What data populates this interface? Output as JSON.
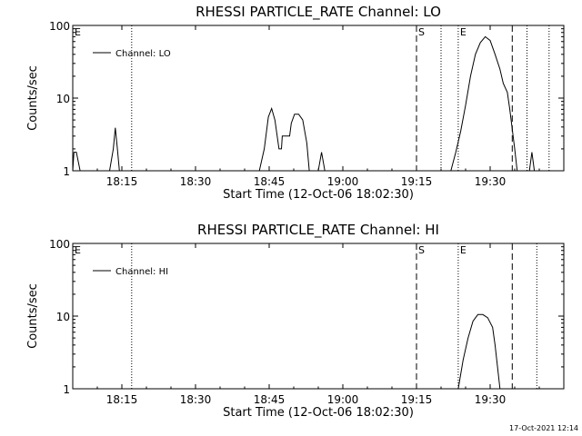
{
  "chart_data": [
    {
      "type": "line",
      "title": "RHESSI PARTICLE_RATE Channel: LO",
      "xlabel": "Start Time (12-Oct-06 18:02:30)",
      "ylabel": "Counts/sec",
      "x_scale": "time",
      "y_scale": "log",
      "xlim": [
        "18:05:00",
        "19:45:00"
      ],
      "ylim": [
        1,
        100
      ],
      "x_ticks": [
        "18:15",
        "18:30",
        "18:45",
        "19:00",
        "19:15",
        "19:30"
      ],
      "y_ticks": [
        "1",
        "10",
        "100"
      ],
      "legend": {
        "placement": "top-left",
        "entries": [
          "Channel: LO"
        ]
      },
      "markers": [
        {
          "time": "19:20:00",
          "style": "dotted",
          "label": ""
        },
        {
          "time": "19:37:30",
          "style": "dotted",
          "label": ""
        },
        {
          "time": "18:17:00",
          "style": "dotted",
          "label": ""
        },
        {
          "time": "19:42:00",
          "style": "dotted",
          "label": ""
        },
        {
          "time": "19:15:00",
          "style": "dashed",
          "label": "S"
        },
        {
          "time": "19:23:30",
          "style": "dotted",
          "label": "E"
        },
        {
          "time": "19:34:30",
          "style": "dashed",
          "label": ""
        }
      ],
      "edge_label": "E",
      "series": [
        {
          "name": "Channel: LO",
          "points": [
            [
              "18:05:00",
              1.0
            ],
            [
              "18:05:15",
              1.8
            ],
            [
              "18:05:45",
              1.8
            ],
            [
              "18:06:30",
              1.0
            ],
            [
              "18:12:30",
              1.0
            ],
            [
              "18:13:15",
              2.0
            ],
            [
              "18:13:40",
              3.9
            ],
            [
              "18:14:05",
              2.0
            ],
            [
              "18:14:30",
              1.0
            ],
            [
              "18:43:00",
              1.0
            ],
            [
              "18:44:00",
              2.0
            ],
            [
              "18:44:50",
              5.5
            ],
            [
              "18:45:30",
              7.2
            ],
            [
              "18:46:10",
              5.0
            ],
            [
              "18:47:00",
              2.0
            ],
            [
              "18:47:30",
              2.0
            ],
            [
              "18:47:40",
              3.0
            ],
            [
              "18:49:10",
              3.0
            ],
            [
              "18:49:30",
              4.5
            ],
            [
              "18:50:10",
              6.0
            ],
            [
              "18:51:00",
              6.0
            ],
            [
              "18:51:50",
              5.0
            ],
            [
              "18:52:40",
              2.4
            ],
            [
              "18:53:10",
              1.0
            ],
            [
              "18:55:00",
              1.0
            ],
            [
              "18:55:40",
              1.8
            ],
            [
              "18:56:20",
              1.0
            ],
            [
              "19:22:00",
              1.0
            ],
            [
              "19:23:00",
              1.8
            ],
            [
              "19:24:00",
              3.5
            ],
            [
              "19:25:00",
              8.0
            ],
            [
              "19:26:00",
              20.0
            ],
            [
              "19:27:00",
              40.0
            ],
            [
              "19:28:00",
              58.0
            ],
            [
              "19:29:00",
              70.0
            ],
            [
              "19:30:00",
              62.0
            ],
            [
              "19:31:00",
              40.0
            ],
            [
              "19:32:00",
              25.0
            ],
            [
              "19:32:40",
              16.0
            ],
            [
              "19:33:30",
              12.0
            ],
            [
              "19:34:00",
              7.0
            ],
            [
              "19:35:00",
              2.0
            ],
            [
              "19:35:30",
              1.0
            ],
            [
              "19:38:00",
              1.0
            ],
            [
              "19:38:30",
              1.8
            ],
            [
              "19:39:00",
              1.0
            ]
          ]
        }
      ]
    },
    {
      "type": "line",
      "title": "RHESSI PARTICLE_RATE Channel: HI",
      "xlabel": "Start Time (12-Oct-06 18:02:30)",
      "ylabel": "Counts/sec",
      "x_scale": "time",
      "y_scale": "log",
      "xlim": [
        "18:05:00",
        "19:45:00"
      ],
      "ylim": [
        1,
        100
      ],
      "x_ticks": [
        "18:15",
        "18:30",
        "18:45",
        "19:00",
        "19:15",
        "19:30"
      ],
      "y_ticks": [
        "1",
        "10",
        "100"
      ],
      "legend": {
        "placement": "top-left",
        "entries": [
          "Channel: HI"
        ]
      },
      "markers": [
        {
          "time": "18:17:00",
          "style": "dotted",
          "label": ""
        },
        {
          "time": "19:15:00",
          "style": "dashed",
          "label": "S"
        },
        {
          "time": "19:23:30",
          "style": "dotted",
          "label": "E"
        },
        {
          "time": "19:34:30",
          "style": "dashed",
          "label": ""
        },
        {
          "time": "19:39:30",
          "style": "dotted",
          "label": ""
        }
      ],
      "edge_label": "E",
      "series": [
        {
          "name": "Channel: HI",
          "points": [
            [
              "19:23:30",
              1.0
            ],
            [
              "19:24:30",
              2.5
            ],
            [
              "19:25:30",
              5.0
            ],
            [
              "19:26:30",
              8.5
            ],
            [
              "19:27:30",
              10.5
            ],
            [
              "19:28:30",
              10.5
            ],
            [
              "19:29:30",
              9.5
            ],
            [
              "19:30:30",
              7.0
            ],
            [
              "19:31:00",
              4.0
            ],
            [
              "19:31:30",
              2.0
            ],
            [
              "19:32:00",
              1.0
            ]
          ]
        }
      ]
    }
  ],
  "timestamp": "17-Oct-2021 12:14"
}
